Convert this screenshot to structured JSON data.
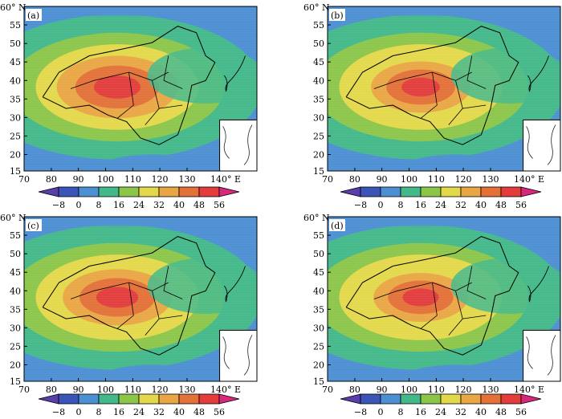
{
  "figure": {
    "panels": [
      {
        "label": "(a)",
        "intensity": 1.0
      },
      {
        "label": "(b)",
        "intensity": 0.82
      },
      {
        "label": "(c)",
        "intensity": 0.9
      },
      {
        "label": "(d)",
        "intensity": 0.78
      }
    ],
    "lat_axis": {
      "title": "60° N",
      "ticks": [
        "55",
        "50",
        "45",
        "40",
        "35",
        "30",
        "25",
        "20",
        "15"
      ]
    },
    "lon_axis": {
      "ticks": [
        "70",
        "80",
        "90",
        "100",
        "110",
        "120",
        "130"
      ],
      "end_label": "140° E"
    },
    "colorbar": {
      "labels": [
        "−8",
        "0",
        "8",
        "16",
        "24",
        "32",
        "40",
        "48",
        "56"
      ],
      "colors": [
        "#5a3fa8",
        "#3a54b8",
        "#4c8fd2",
        "#43b98a",
        "#8bc64a",
        "#e3d84a",
        "#e9a644",
        "#e37138",
        "#e23c3c",
        "#d6297c"
      ]
    }
  }
}
